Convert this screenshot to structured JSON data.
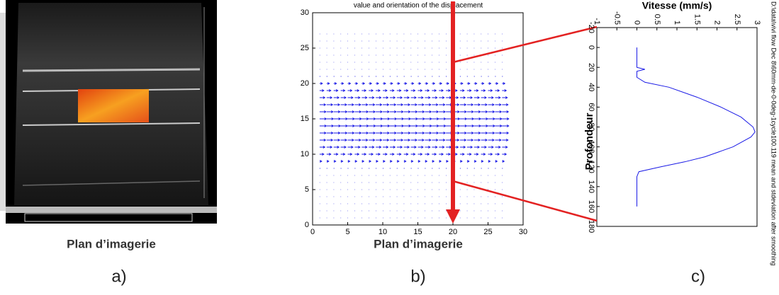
{
  "panels": [
    {
      "caption": "Plan d’imagerie",
      "letter": "a)"
    },
    {
      "title": "value and orientation of the displacement",
      "caption": "Plan d’imagerie",
      "letter": "b)",
      "xlim": [
        0,
        30
      ],
      "ylim": [
        0,
        30
      ],
      "xticks": [
        0,
        5,
        10,
        15,
        20,
        25,
        30
      ],
      "yticks": [
        0,
        5,
        10,
        15,
        20,
        25,
        30
      ],
      "arrow_x": 20,
      "quiver": {
        "x": [
          1,
          2,
          3,
          4,
          5,
          6,
          7,
          8,
          9,
          10,
          11,
          12,
          13,
          14,
          15,
          16,
          17,
          18,
          19,
          20,
          21,
          22,
          23,
          24,
          25,
          26,
          27
        ],
        "y": [
          1,
          2,
          3,
          4,
          5,
          6,
          7,
          8,
          9,
          10,
          11,
          12,
          13,
          14,
          15,
          16,
          17,
          18,
          19,
          20,
          21,
          22,
          23,
          24,
          25,
          26,
          27
        ],
        "u": [
          0.05,
          0.05,
          0.05,
          0.05,
          0.05,
          0.05,
          0.05,
          0.1,
          0.3,
          0.6,
          0.75,
          0.85,
          0.9,
          0.95,
          0.95,
          0.9,
          0.85,
          0.75,
          0.6,
          0.4,
          0.1,
          0.05,
          0.05,
          0.05,
          0.05,
          0.05,
          0.05
        ]
      }
    },
    {
      "xlabel": "Vitesse (mm/s)",
      "ylabel": "Profondeur",
      "note": "D:\\data\\vivi flow Dec 8\\60mm-de-0-0deg-1cycle100.119 mean and stdeviation after smoothing",
      "letter": "c)",
      "xlim": [
        -1,
        3
      ],
      "ylim": [
        -20,
        180
      ],
      "xticks": [
        -1,
        -0.5,
        0,
        0.5,
        1,
        1.5,
        2,
        2.5,
        3
      ],
      "yticks": [
        -20,
        0,
        20,
        40,
        60,
        80,
        100,
        120,
        140,
        160,
        180
      ],
      "profile": {
        "depth": [
          0,
          10,
          20,
          22,
          24,
          30,
          35,
          40,
          50,
          60,
          70,
          80,
          85,
          90,
          100,
          110,
          115,
          120,
          125,
          130,
          140,
          150,
          160
        ],
        "velocity": [
          0,
          0,
          0,
          0.2,
          0,
          0,
          0.2,
          0.8,
          1.5,
          2.1,
          2.6,
          2.9,
          2.95,
          2.85,
          2.4,
          1.7,
          1.2,
          0.6,
          0.05,
          0,
          0,
          0,
          0
        ]
      }
    }
  ]
}
